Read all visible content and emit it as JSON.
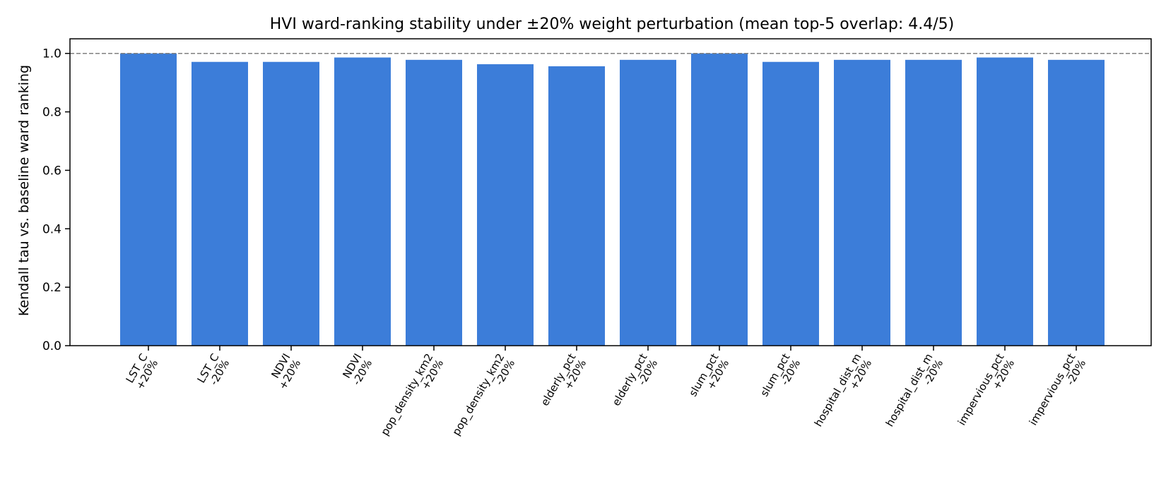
{
  "chart_data": {
    "type": "bar",
    "title": "HVI ward-ranking stability under ±20% weight perturbation (mean top-5 overlap: 4.4/5)",
    "xlabel": "",
    "ylabel": "Kendall tau vs. baseline ward ranking",
    "ylim": [
      0.0,
      1.05
    ],
    "yticks": [
      "0.0",
      "0.2",
      "0.4",
      "0.6",
      "0.8",
      "1.0"
    ],
    "reference_line": {
      "y": 1.0,
      "style": "dashed",
      "color": "#808080"
    },
    "bar_color": "#3c7dd9",
    "grid": false,
    "legend": "none",
    "categories": [
      [
        "LST_C",
        "+20%"
      ],
      [
        "LST_C",
        "-20%"
      ],
      [
        "NDVI",
        "+20%"
      ],
      [
        "NDVI",
        "-20%"
      ],
      [
        "pop_density_km2",
        "+20%"
      ],
      [
        "pop_density_km2",
        "-20%"
      ],
      [
        "elderly_pct",
        "+20%"
      ],
      [
        "elderly_pct",
        "-20%"
      ],
      [
        "slum_pct",
        "+20%"
      ],
      [
        "slum_pct",
        "-20%"
      ],
      [
        "hospital_dist_m",
        "+20%"
      ],
      [
        "hospital_dist_m",
        "-20%"
      ],
      [
        "impervious_pct",
        "+20%"
      ],
      [
        "impervious_pct",
        "-20%"
      ]
    ],
    "values": [
      1.0,
      0.971,
      0.971,
      0.986,
      0.978,
      0.963,
      0.956,
      0.978,
      1.0,
      0.971,
      0.978,
      0.978,
      0.986,
      0.978
    ]
  }
}
